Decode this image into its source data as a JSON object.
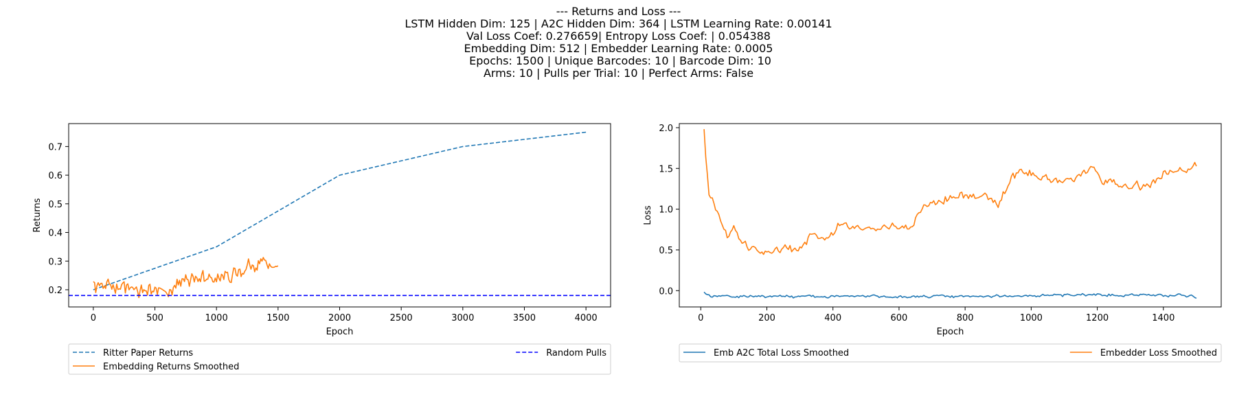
{
  "figure_title": [
    "--- Returns and Loss ---",
    "LSTM Hidden Dim: 125 | A2C Hidden Dim: 364 | LSTM Learning Rate: 0.00141",
    "Val Loss Coef: 0.276659| Entropy Loss Coef: | 0.054388",
    "Embedding Dim: 512 | Embedder Learning Rate: 0.0005",
    " Epochs: 1500 | Unique Barcodes: 10 | Barcode Dim: 10",
    "Arms: 10 | Pulls per Trial: 10 | Perfect Arms: False"
  ],
  "chart_data": [
    {
      "type": "line",
      "xlabel": "Epoch",
      "ylabel": "Returns",
      "xlim": [
        -200,
        4200
      ],
      "ylim": [
        0.14,
        0.78
      ],
      "xticks": [
        0,
        500,
        1000,
        1500,
        2000,
        2500,
        3000,
        3500,
        4000
      ],
      "yticks": [
        0.2,
        0.3,
        0.4,
        0.5,
        0.6,
        0.7
      ],
      "ytick_decimals": 1,
      "grid": false,
      "legend_placement": "below",
      "series": [
        {
          "name": "Ritter Paper Returns",
          "color": "#1f77b4",
          "dash": "dashed",
          "x": [
            0,
            1000,
            2000,
            3000,
            4000
          ],
          "y": [
            0.2,
            0.35,
            0.6,
            0.7,
            0.75
          ]
        },
        {
          "name": "Embedding Returns Smoothed",
          "color": "#ff7f0e",
          "dash": "solid",
          "x_start": 0,
          "x_end": 1500,
          "x_step": 10,
          "trend": [
            [
              0,
              0.215
            ],
            [
              200,
              0.205
            ],
            [
              400,
              0.195
            ],
            [
              600,
              0.205
            ],
            [
              800,
              0.235
            ],
            [
              1000,
              0.25
            ],
            [
              1200,
              0.265
            ],
            [
              1300,
              0.285
            ],
            [
              1400,
              0.3
            ],
            [
              1500,
              0.27
            ]
          ],
          "noise_amplitude": 0.018
        },
        {
          "name": "Random Pulls",
          "color": "#0000ff",
          "dash": "dashed",
          "x": [
            -200,
            4200
          ],
          "y": [
            0.18,
            0.18
          ]
        }
      ],
      "legend": [
        {
          "name": "Ritter Paper Returns",
          "color": "#1f77b4",
          "dash": "dashed",
          "column": "left"
        },
        {
          "name": "Embedding Returns Smoothed",
          "color": "#ff7f0e",
          "dash": "solid",
          "column": "left"
        },
        {
          "name": "Random Pulls",
          "color": "#0000ff",
          "dash": "dashed",
          "column": "right"
        }
      ]
    },
    {
      "type": "line",
      "xlabel": "Epoch",
      "ylabel": "Loss",
      "xlim": [
        -65,
        1575
      ],
      "ylim": [
        -0.2,
        2.05
      ],
      "xticks": [
        0,
        200,
        400,
        600,
        800,
        1000,
        1200,
        1400
      ],
      "yticks": [
        0.0,
        0.5,
        1.0,
        1.5,
        2.0
      ],
      "ytick_decimals": 1,
      "grid": false,
      "legend_placement": "below",
      "series": [
        {
          "name": "Emb A2C Total Loss Smoothed",
          "color": "#1f77b4",
          "dash": "solid",
          "x_start": 10,
          "x_end": 1500,
          "x_step": 5,
          "trend": [
            [
              10,
              -0.02
            ],
            [
              30,
              -0.06
            ],
            [
              100,
              -0.07
            ],
            [
              400,
              -0.07
            ],
            [
              800,
              -0.07
            ],
            [
              1000,
              -0.06
            ],
            [
              1200,
              -0.05
            ],
            [
              1400,
              -0.05
            ],
            [
              1500,
              -0.07
            ]
          ],
          "noise_amplitude": 0.012
        },
        {
          "name": "Embedder Loss Smoothed",
          "color": "#ff7f0e",
          "dash": "solid",
          "x_start": 10,
          "x_end": 1500,
          "x_step": 5,
          "trend": [
            [
              10,
              1.95
            ],
            [
              15,
              1.6
            ],
            [
              25,
              1.15
            ],
            [
              40,
              1.05
            ],
            [
              60,
              0.85
            ],
            [
              80,
              0.65
            ],
            [
              100,
              0.75
            ],
            [
              120,
              0.55
            ],
            [
              160,
              0.55
            ],
            [
              200,
              0.47
            ],
            [
              260,
              0.52
            ],
            [
              300,
              0.5
            ],
            [
              340,
              0.72
            ],
            [
              380,
              0.62
            ],
            [
              420,
              0.82
            ],
            [
              460,
              0.8
            ],
            [
              500,
              0.75
            ],
            [
              560,
              0.78
            ],
            [
              600,
              0.8
            ],
            [
              640,
              0.82
            ],
            [
              680,
              1.05
            ],
            [
              720,
              1.1
            ],
            [
              760,
              1.15
            ],
            [
              800,
              1.15
            ],
            [
              860,
              1.15
            ],
            [
              900,
              1.05
            ],
            [
              940,
              1.4
            ],
            [
              980,
              1.45
            ],
            [
              1020,
              1.4
            ],
            [
              1080,
              1.35
            ],
            [
              1120,
              1.35
            ],
            [
              1160,
              1.45
            ],
            [
              1180,
              1.55
            ],
            [
              1220,
              1.35
            ],
            [
              1260,
              1.3
            ],
            [
              1300,
              1.28
            ],
            [
              1360,
              1.3
            ],
            [
              1400,
              1.45
            ],
            [
              1460,
              1.48
            ],
            [
              1500,
              1.52
            ]
          ],
          "noise_amplitude": 0.035
        }
      ],
      "legend": [
        {
          "name": "Emb A2C Total Loss Smoothed",
          "color": "#1f77b4",
          "dash": "solid",
          "column": "left"
        },
        {
          "name": "Embedder Loss Smoothed",
          "color": "#ff7f0e",
          "dash": "solid",
          "column": "right"
        }
      ]
    }
  ]
}
